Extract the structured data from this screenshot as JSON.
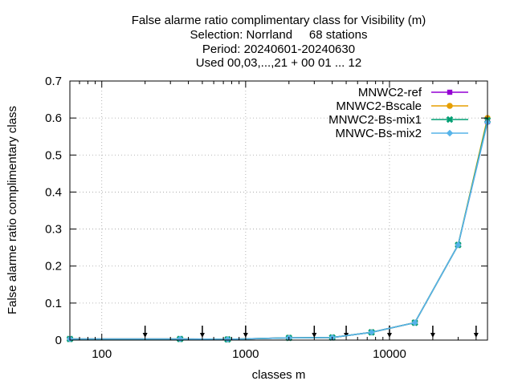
{
  "chart_data": {
    "type": "line",
    "title_lines": [
      "False alarme ratio complimentary class  for Visibility (m)",
      "Selection: Norrland     68 stations",
      "Period: 20240601-20240630",
      "Used 00,03,...,21 + 00 01 ... 12"
    ],
    "xlabel": "classes m",
    "ylabel": "False alarme ratio complimentary class",
    "x_scale": "log",
    "xlim": [
      60,
      48000
    ],
    "ylim": [
      0,
      0.7
    ],
    "x_ticks": [
      100,
      1000,
      10000
    ],
    "x_tick_labels": [
      "100",
      "1000",
      "10000"
    ],
    "y_ticks": [
      0,
      0.1,
      0.2,
      0.3,
      0.4,
      0.5,
      0.6,
      0.7
    ],
    "y_tick_labels": [
      "0",
      "0.1",
      "0.2",
      "0.3",
      "0.4",
      "0.5",
      "0.6",
      "0.7"
    ],
    "grid": true,
    "legend_position": "top-right",
    "x": [
      60,
      350,
      750,
      2000,
      4000,
      7500,
      15000,
      30000,
      48000
    ],
    "series": [
      {
        "name": "MNWC2-ref",
        "color": "#9400d3",
        "marker": "filled-square",
        "values": [
          0.003,
          0.003,
          0.002,
          0.006,
          0.007,
          0.021,
          0.047,
          0.257,
          0.59
        ]
      },
      {
        "name": "MNWC2-Bscale",
        "color": "#e69f00",
        "marker": "filled-circle",
        "values": [
          0.003,
          0.003,
          0.002,
          0.006,
          0.007,
          0.021,
          0.047,
          0.257,
          0.6
        ]
      },
      {
        "name": "MNWC2-Bs-mix1",
        "color": "#009e73",
        "marker": "filled-x",
        "values": [
          0.003,
          0.003,
          0.002,
          0.006,
          0.007,
          0.021,
          0.047,
          0.257,
          0.594
        ]
      },
      {
        "name": "MNWC-Bs-mix2",
        "color": "#56b4e9",
        "marker": "filled-diamond",
        "values": [
          0.003,
          0.003,
          0.002,
          0.006,
          0.007,
          0.021,
          0.047,
          0.257,
          0.588
        ]
      }
    ],
    "threshold_arrows_x": [
      200,
      500,
      1000,
      3000,
      5000,
      10000,
      20000,
      40000
    ]
  }
}
